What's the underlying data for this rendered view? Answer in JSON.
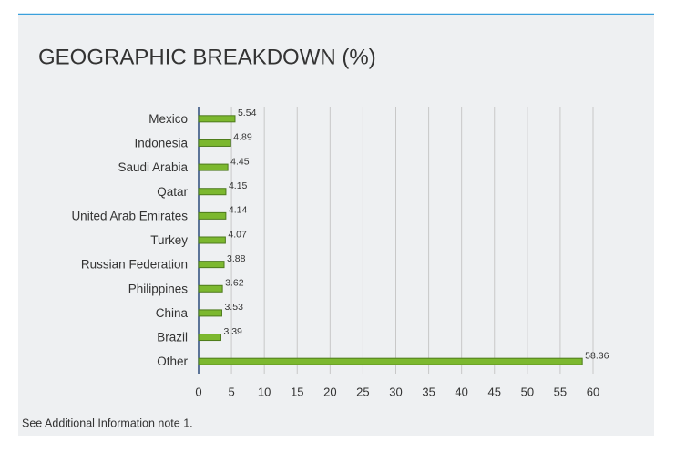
{
  "chart_data": {
    "type": "bar",
    "orientation": "horizontal",
    "title": "GEOGRAPHIC BREAKDOWN (%)",
    "categories": [
      "Mexico",
      "Indonesia",
      "Saudi Arabia",
      "Qatar",
      "United Arab Emirates",
      "Turkey",
      "Russian Federation",
      "Philippines",
      "China",
      "Brazil",
      "Other"
    ],
    "values": [
      5.54,
      4.89,
      4.45,
      4.15,
      4.14,
      4.07,
      3.88,
      3.62,
      3.53,
      3.39,
      58.36
    ],
    "color": "#7cb82f",
    "xlim": [
      0,
      60
    ],
    "xticks": [
      0,
      5,
      10,
      15,
      20,
      25,
      30,
      35,
      40,
      45,
      50,
      55,
      60
    ],
    "grid": true,
    "note": "See Additional Information note 1."
  }
}
